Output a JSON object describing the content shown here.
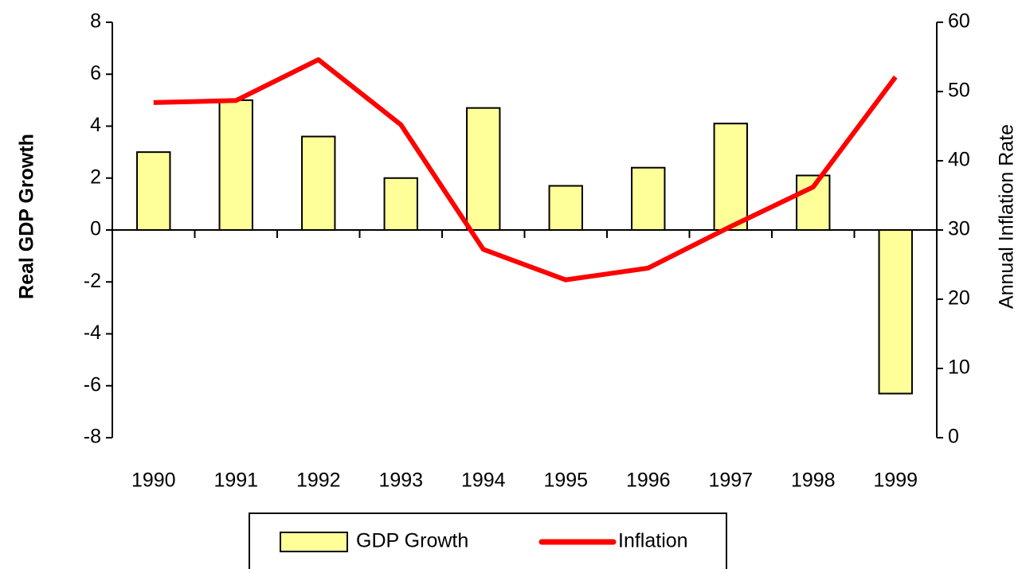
{
  "chart_data": {
    "type": "bar",
    "categories": [
      "1990",
      "1991",
      "1992",
      "1993",
      "1994",
      "1995",
      "1996",
      "1997",
      "1998",
      "1999"
    ],
    "series": [
      {
        "name": "GDP Growth",
        "type": "bar",
        "color": "#ffff99",
        "values": [
          3.0,
          5.0,
          3.6,
          2.0,
          4.7,
          1.7,
          2.4,
          4.1,
          2.1,
          -6.3
        ]
      },
      {
        "name": "Inflation",
        "type": "line",
        "axis": "y2",
        "color": "#ff0000",
        "values": [
          48.4,
          48.7,
          54.6,
          45.2,
          27.2,
          22.8,
          24.5,
          30.5,
          36.2,
          52.1
        ]
      }
    ],
    "y_label": "Real GDP Growth",
    "y2_label": "Annual Inflation Rate",
    "ylim": [
      -8,
      8
    ],
    "yticks": [
      -8,
      -6,
      -4,
      -2,
      0,
      2,
      4,
      6,
      8
    ],
    "y2lim": [
      0,
      60
    ],
    "y2ticks": [
      0,
      10,
      20,
      30,
      40,
      50,
      60
    ],
    "grid": false,
    "legend": "bottom"
  }
}
